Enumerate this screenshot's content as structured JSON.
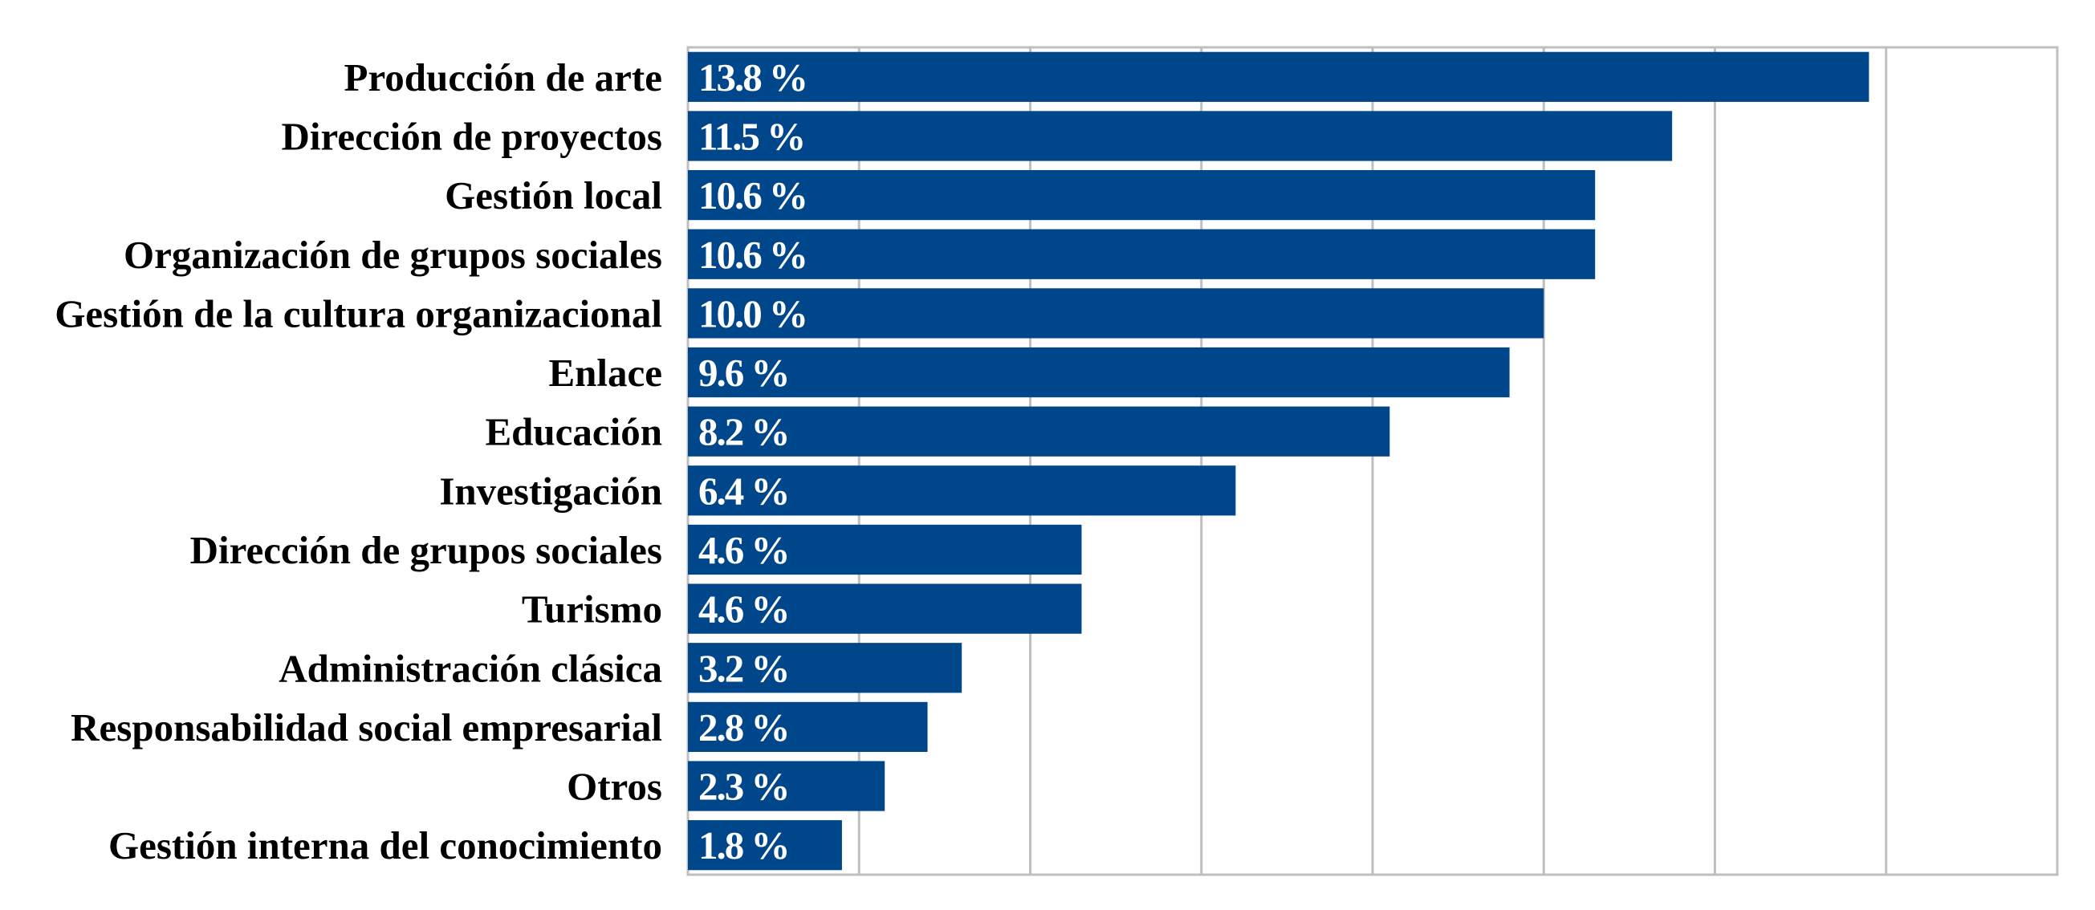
{
  "chart_data": {
    "type": "bar",
    "orientation": "horizontal",
    "categories": [
      "Producción de arte",
      "Dirección de proyectos",
      "Gestión local",
      "Organización de grupos sociales",
      "Gestión de la cultura organizacional",
      "Enlace",
      "Educación",
      "Investigación",
      "Dirección de grupos sociales",
      "Turismo",
      "Administración clásica",
      "Responsabilidad social empresarial",
      "Otros",
      "Gestión interna del conocimiento"
    ],
    "values": [
      13.8,
      11.5,
      10.6,
      10.6,
      10.0,
      9.6,
      8.2,
      6.4,
      4.6,
      4.6,
      3.2,
      2.8,
      2.3,
      1.8
    ],
    "data_labels": [
      "13.8 %",
      "11.5 %",
      "10.6 %",
      "10.6 %",
      "10.0 %",
      "9.6 %",
      "8.2 %",
      "6.4 %",
      "4.6 %",
      "4.6 %",
      "3.2 %",
      "2.8 %",
      "2.3 %",
      "1.8 %"
    ],
    "xlim": [
      0,
      16
    ],
    "grid_step": 2,
    "grid": true,
    "tick_labels_shown": false,
    "bar_color": "#00468B",
    "grid_color": "#BFBFBF"
  }
}
